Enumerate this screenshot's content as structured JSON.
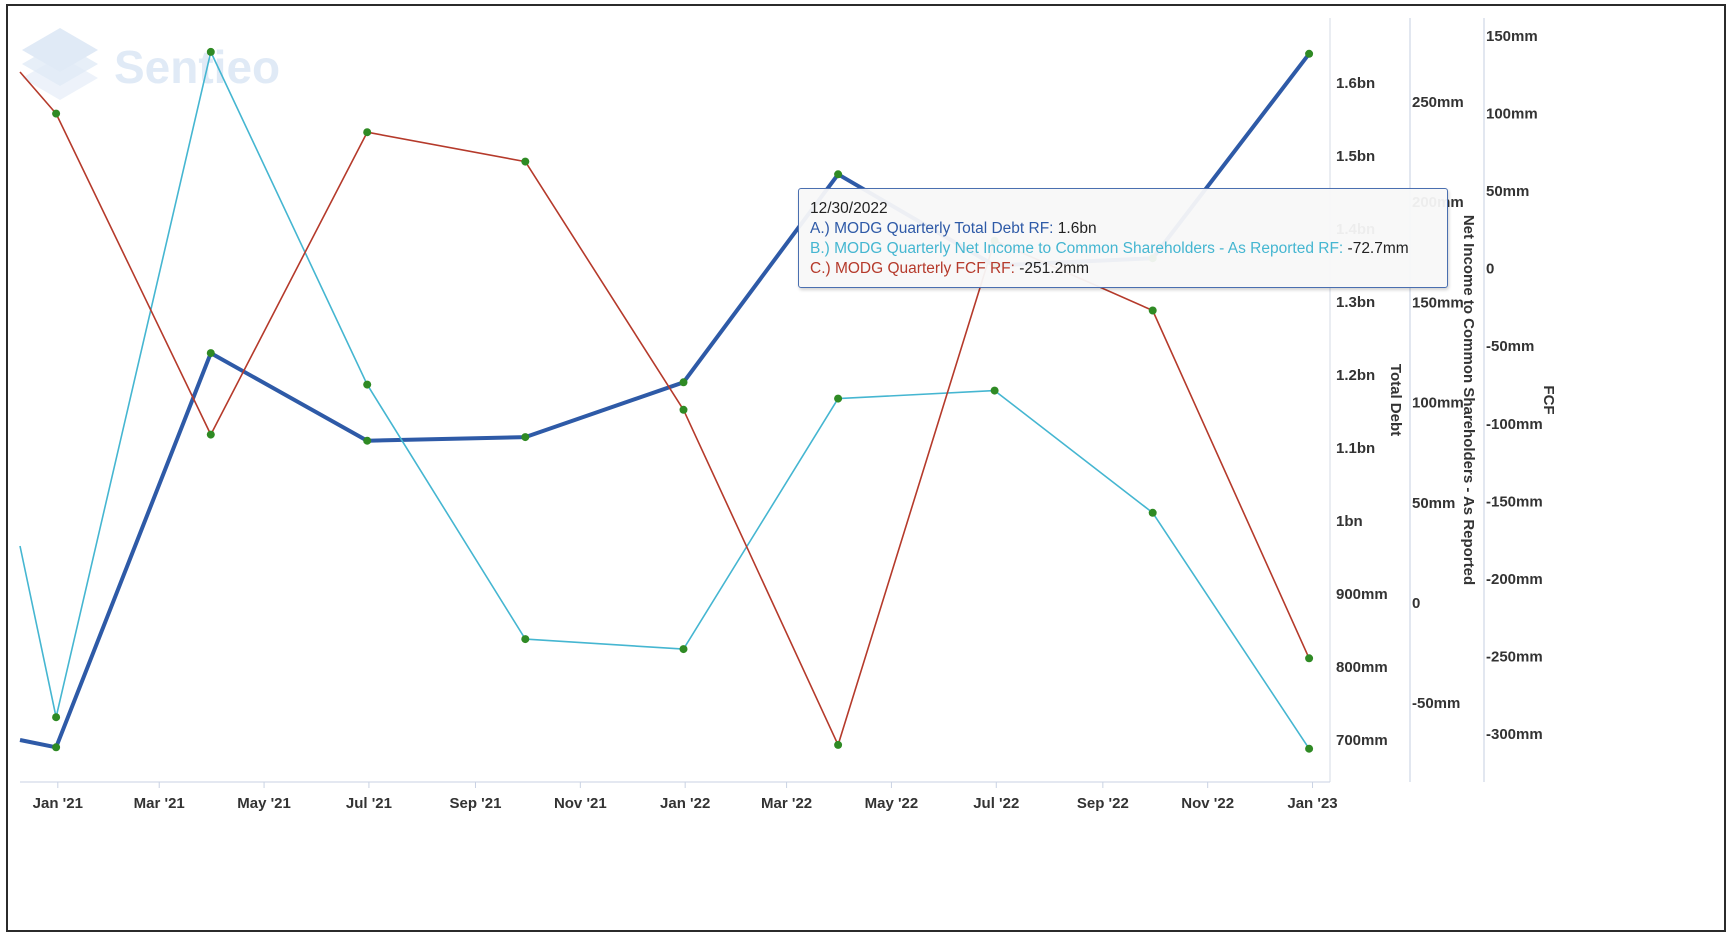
{
  "logo": {
    "text": "Sentieo"
  },
  "tooltip": {
    "date": "12/30/2022",
    "rows": [
      {
        "name": "A.) MODG Quarterly Total Debt RF:",
        "value": "1.6bn",
        "color": "#2e5aa7"
      },
      {
        "name": "B.) MODG Quarterly Net Income to Common Shareholders - As Reported RF:",
        "value": "-72.7mm",
        "color": "#45b6d1"
      },
      {
        "name": "C.) MODG Quarterly FCF RF:",
        "value": "-251.2mm",
        "color": "#b53a2b"
      }
    ]
  },
  "chart_data": {
    "type": "line",
    "x_tick_labels": [
      "Jan '21",
      "Mar '21",
      "May '21",
      "Jul '21",
      "Sep '21",
      "Nov '21",
      "Jan '22",
      "Mar '22",
      "May '22",
      "Jul '22",
      "Sep '22",
      "Nov '22",
      "Jan '23"
    ],
    "x": [
      "2020-12-31",
      "2021-03-31",
      "2021-06-30",
      "2021-09-30",
      "2021-12-31",
      "2022-03-31",
      "2022-06-30",
      "2022-09-30",
      "2022-12-30"
    ],
    "axes": [
      {
        "id": "debt",
        "title": "Total Debt",
        "ticks": [
          "700mm",
          "800mm",
          "900mm",
          "1bn",
          "1.1bn",
          "1.2bn",
          "1.3bn",
          "1.4bn",
          "1.5bn",
          "1.6bn"
        ],
        "range_mm": [
          650,
          1650
        ]
      },
      {
        "id": "ni",
        "title": "Net Income to Common Shareholders - As Reported",
        "ticks": [
          "-50mm",
          "0",
          "50mm",
          "100mm",
          "150mm",
          "200mm",
          "250mm"
        ],
        "range_mm": [
          -75,
          275
        ]
      },
      {
        "id": "fcf",
        "title": "FCF",
        "ticks": [
          "-300mm",
          "-250mm",
          "-200mm",
          "-150mm",
          "-100mm",
          "-50mm",
          "0",
          "50mm",
          "100mm",
          "150mm"
        ],
        "range_mm": [
          -325,
          150
        ]
      }
    ],
    "series": [
      {
        "name": "MODG Quarterly Total Debt RF",
        "axis": "debt",
        "color": "#2e5aa7",
        "width": 4,
        "values": [
          690,
          1230,
          1110,
          1115,
          1190,
          1475,
          1350,
          1360,
          1640
        ]
      },
      {
        "name": "MODG Quarterly Net Income to Common Shareholders - As Reported RF",
        "axis": "ni",
        "color": "#45b6d1",
        "width": 1.6,
        "values": [
          -57,
          275,
          109,
          -18,
          -23,
          102,
          106,
          45,
          -72.7
        ]
      },
      {
        "name": "MODG Quarterly FCF RF",
        "axis": "fcf",
        "color": "#b53a2b",
        "width": 1.6,
        "values": [
          100,
          -107,
          88,
          69,
          -91,
          -307,
          18,
          -27,
          -251.2
        ]
      }
    ]
  }
}
